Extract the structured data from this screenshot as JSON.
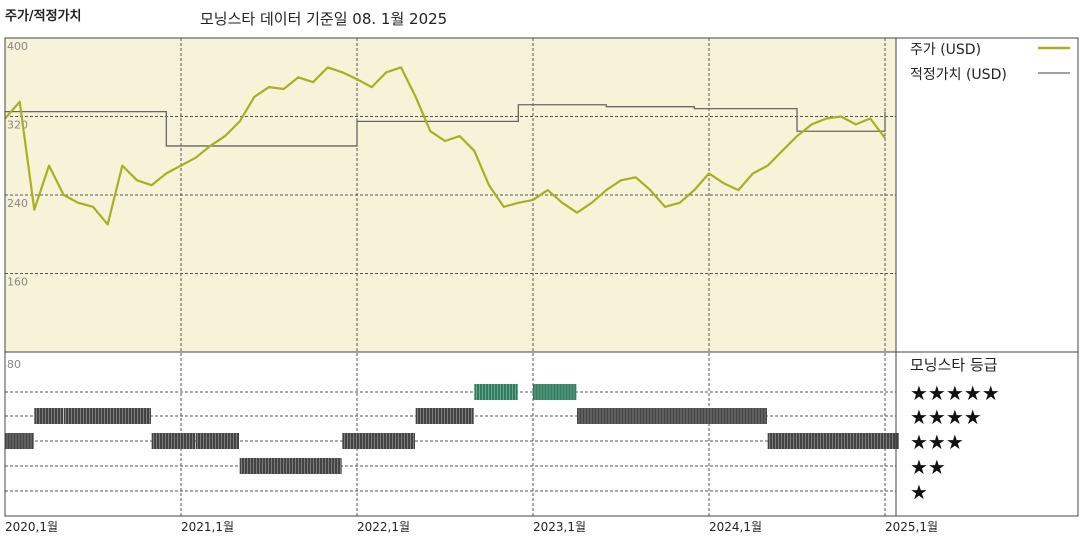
{
  "header": {
    "left_title": "주가/적정가치",
    "subtitle": "모닝스타 데이터 기준일 08. 1월 2025"
  },
  "colors": {
    "plot_bg": "#f7f3d9",
    "price_line": "#a8b020",
    "fair_value_line": "#666666",
    "five_star_bar": "#2e7d5e",
    "rating_bar": "#444444",
    "grid": "#555555"
  },
  "chart_data": [
    {
      "type": "line",
      "title": "주가/적정가치",
      "ylim": [
        80,
        400
      ],
      "y_ticks": [
        "400",
        "320",
        "240",
        "160"
      ],
      "x_ticks": [
        "2020,1월",
        "2021,1월",
        "2022,1월",
        "2023,1월",
        "2024,1월",
        "2025,1월"
      ],
      "grid": true,
      "legend_placement": "right",
      "series": [
        {
          "name": "주가 (USD)",
          "x": [
            "2020-01",
            "2020-02",
            "2020-03",
            "2020-04",
            "2020-05",
            "2020-06",
            "2020-07",
            "2020-08",
            "2020-09",
            "2020-10",
            "2020-11",
            "2020-12",
            "2021-01",
            "2021-02",
            "2021-03",
            "2021-04",
            "2021-05",
            "2021-06",
            "2021-07",
            "2021-08",
            "2021-09",
            "2021-10",
            "2021-11",
            "2021-12",
            "2022-01",
            "2022-02",
            "2022-03",
            "2022-04",
            "2022-05",
            "2022-06",
            "2022-07",
            "2022-08",
            "2022-09",
            "2022-10",
            "2022-11",
            "2022-12",
            "2023-01",
            "2023-02",
            "2023-03",
            "2023-04",
            "2023-05",
            "2023-06",
            "2023-07",
            "2023-08",
            "2023-09",
            "2023-10",
            "2023-11",
            "2023-12",
            "2024-01",
            "2024-02",
            "2024-03",
            "2024-04",
            "2024-05",
            "2024-06",
            "2024-07",
            "2024-08",
            "2024-09",
            "2024-10",
            "2024-11",
            "2024-12",
            "2025-01"
          ],
          "values": [
            318,
            335,
            225,
            270,
            240,
            232,
            228,
            210,
            270,
            255,
            250,
            262,
            270,
            278,
            290,
            300,
            315,
            340,
            350,
            348,
            360,
            355,
            370,
            365,
            358,
            350,
            365,
            370,
            340,
            305,
            295,
            300,
            285,
            250,
            228,
            232,
            235,
            245,
            232,
            222,
            232,
            245,
            255,
            258,
            245,
            228,
            232,
            245,
            262,
            252,
            245,
            262,
            270,
            285,
            300,
            312,
            318,
            320,
            312,
            318,
            298
          ]
        },
        {
          "name": "적정가치 (USD)",
          "x": [
            "2020-01",
            "2020-08",
            "2020-12",
            "2021-07",
            "2022-01",
            "2022-12",
            "2023-06",
            "2023-12",
            "2024-07",
            "2025-01"
          ],
          "values": [
            325,
            325,
            290,
            290,
            315,
            332,
            330,
            328,
            305,
            325
          ]
        }
      ]
    },
    {
      "type": "heatmap",
      "title": "모닝스타 등급",
      "ylim_label": "80",
      "categories": [
        "★★★★★",
        "★★★★",
        "★★★",
        "★★",
        "★"
      ],
      "periods": [
        {
          "from": "2020-01",
          "to": "2020-02",
          "stars": 3
        },
        {
          "from": "2020-03",
          "to": "2020-04",
          "stars": 4
        },
        {
          "from": "2020-05",
          "to": "2020-10",
          "stars": 4
        },
        {
          "from": "2020-11",
          "to": "2021-01",
          "stars": 3
        },
        {
          "from": "2021-02",
          "to": "2021-04",
          "stars": 3
        },
        {
          "from": "2021-05",
          "to": "2021-11",
          "stars": 2
        },
        {
          "from": "2021-12",
          "to": "2022-04",
          "stars": 3
        },
        {
          "from": "2022-05",
          "to": "2022-08",
          "stars": 4
        },
        {
          "from": "2022-09",
          "to": "2022-11",
          "stars": 5
        },
        {
          "from": "2023-01",
          "to": "2023-03",
          "stars": 5
        },
        {
          "from": "2023-04",
          "to": "2024-04",
          "stars": 4
        },
        {
          "from": "2024-05",
          "to": "2025-01",
          "stars": 3
        }
      ]
    }
  ]
}
